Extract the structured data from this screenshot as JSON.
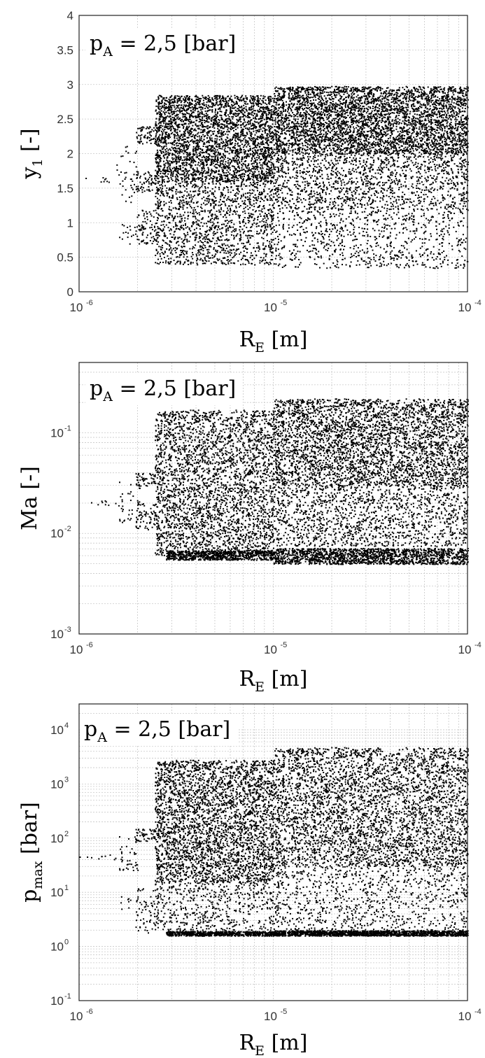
{
  "chart_data": [
    {
      "type": "scatter",
      "title": "",
      "annotation": {
        "prefix": "p",
        "sub": "A",
        "text": " = 2,5 [bar]"
      },
      "xlabel": {
        "main": "R",
        "sub": "E",
        "rest": " [m]"
      },
      "ylabel": {
        "main": "y",
        "sub": "1",
        "rest": " [-]"
      },
      "xscale": "log",
      "yscale": "linear",
      "xlim": [
        1e-06,
        0.0001
      ],
      "ylim": [
        0,
        4
      ],
      "grid": true,
      "x_ticks": [
        {
          "base": "10",
          "exp": "-6"
        },
        {
          "base": "10",
          "exp": "-5"
        },
        {
          "base": "10",
          "exp": "-4"
        }
      ],
      "y_ticks": [
        "0",
        "0.5",
        "1",
        "1.5",
        "2",
        "2.5",
        "3",
        "3.5",
        "4"
      ],
      "y_tick_values": [
        0,
        0.5,
        1,
        1.5,
        2,
        2.5,
        3,
        3.5,
        4
      ],
      "y_ticks_sup": [],
      "regions": [
        {
          "x": [
            1e-06,
            1.55e-06
          ],
          "y": [
            1.58,
            1.66
          ],
          "n": 8
        },
        {
          "x": [
            1.55e-06,
            2e-06
          ],
          "y": [
            1.3,
            2.15
          ],
          "n": 40
        },
        {
          "x": [
            1.6e-06,
            2.4e-06
          ],
          "y": [
            0.7,
            1.0
          ],
          "n": 30
        },
        {
          "x": [
            1.95e-06,
            2.45e-06
          ],
          "y": [
            2.15,
            2.4
          ],
          "n": 60
        },
        {
          "x": [
            1.95e-06,
            2.45e-06
          ],
          "y": [
            1.45,
            1.75
          ],
          "n": 60
        },
        {
          "x": [
            1.95e-06,
            2.45e-06
          ],
          "y": [
            0.7,
            1.2
          ],
          "n": 60
        },
        {
          "x": [
            2.45e-06,
            1e-05
          ],
          "y": [
            1.6,
            2.85
          ],
          "n": 3200
        },
        {
          "x": [
            2.45e-06,
            1e-05
          ],
          "y": [
            0.4,
            1.6
          ],
          "n": 1400
        },
        {
          "x": [
            1e-05,
            0.0001
          ],
          "y": [
            2.0,
            2.98
          ],
          "n": 4200
        },
        {
          "x": [
            1e-05,
            0.0001
          ],
          "y": [
            1.2,
            2.0
          ],
          "n": 1400
        },
        {
          "x": [
            1e-05,
            0.0001
          ],
          "y": [
            0.35,
            1.2
          ],
          "n": 800
        }
      ]
    },
    {
      "type": "scatter",
      "title": "",
      "annotation": {
        "prefix": "p",
        "sub": "A",
        "text": " = 2,5 [bar]"
      },
      "xlabel": {
        "main": "R",
        "sub": "E",
        "rest": " [m]"
      },
      "ylabel": {
        "main": "Ma",
        "sub": "",
        "rest": " [-]"
      },
      "xscale": "log",
      "yscale": "log",
      "xlim": [
        1e-06,
        0.0001
      ],
      "ylim": [
        0.001,
        0.5
      ],
      "grid": true,
      "x_ticks": [
        {
          "base": "10",
          "exp": "-6"
        },
        {
          "base": "10",
          "exp": "-5"
        },
        {
          "base": "10",
          "exp": "-4"
        }
      ],
      "y_ticks_sup": [
        {
          "base": "10",
          "exp": "-3",
          "value": 0.001
        },
        {
          "base": "10",
          "exp": "-2",
          "value": 0.01
        },
        {
          "base": "10",
          "exp": "-1",
          "value": 0.1
        }
      ],
      "y_ticks": [],
      "regions": [
        {
          "x": [
            1e-06,
            1.6e-06
          ],
          "y": [
            0.019,
            0.022
          ],
          "n": 10
        },
        {
          "x": [
            1.6e-06,
            2.1e-06
          ],
          "y": [
            0.013,
            0.033
          ],
          "n": 40
        },
        {
          "x": [
            1.95e-06,
            2.45e-06
          ],
          "y": [
            0.03,
            0.04
          ],
          "n": 50
        },
        {
          "x": [
            1.95e-06,
            2.45e-06
          ],
          "y": [
            0.011,
            0.02
          ],
          "n": 60
        },
        {
          "x": [
            2.45e-06,
            1e-05
          ],
          "y": [
            0.006,
            0.17
          ],
          "n": 3000
        },
        {
          "x": [
            2.8e-06,
            1e-05
          ],
          "y": [
            0.0055,
            0.0068
          ],
          "n": 700
        },
        {
          "x": [
            1e-05,
            0.0001
          ],
          "y": [
            0.03,
            0.22
          ],
          "n": 3600
        },
        {
          "x": [
            1e-05,
            0.0001
          ],
          "y": [
            0.0075,
            0.03
          ],
          "n": 1400
        },
        {
          "x": [
            1e-05,
            0.0001
          ],
          "y": [
            0.005,
            0.0072
          ],
          "n": 1600
        }
      ]
    },
    {
      "type": "scatter",
      "title": "",
      "annotation": {
        "prefix": "p",
        "sub": "A",
        "text": " = 2,5 [bar]"
      },
      "xlabel": {
        "main": "R",
        "sub": "E",
        "rest": " [m]"
      },
      "ylabel": {
        "main": "p",
        "sub": "max",
        "rest": " [bar]"
      },
      "xscale": "log",
      "yscale": "log",
      "xlim": [
        1e-06,
        0.0001
      ],
      "ylim": [
        0.1,
        30000
      ],
      "grid": true,
      "x_ticks": [
        {
          "base": "10",
          "exp": "-6"
        },
        {
          "base": "10",
          "exp": "-5"
        },
        {
          "base": "10",
          "exp": "-4"
        }
      ],
      "y_ticks_sup": [
        {
          "base": "10",
          "exp": "-1",
          "value": 0.1
        },
        {
          "base": "10",
          "exp": "0",
          "value": 1
        },
        {
          "base": "10",
          "exp": "1",
          "value": 10
        },
        {
          "base": "10",
          "exp": "2",
          "value": 100
        },
        {
          "base": "10",
          "exp": "3",
          "value": 1000
        },
        {
          "base": "10",
          "exp": "4",
          "value": 10000
        }
      ],
      "y_ticks": [],
      "regions": [
        {
          "x": [
            1e-06,
            1.6e-06
          ],
          "y": [
            40,
            50
          ],
          "n": 10
        },
        {
          "x": [
            1.6e-06,
            2e-06
          ],
          "y": [
            25,
            110
          ],
          "n": 40
        },
        {
          "x": [
            1.6e-06,
            2e-06
          ],
          "y": [
            5,
            9
          ],
          "n": 10
        },
        {
          "x": [
            1.95e-06,
            2.45e-06
          ],
          "y": [
            90,
            150
          ],
          "n": 50
        },
        {
          "x": [
            1.95e-06,
            2.45e-06
          ],
          "y": [
            1.8,
            12
          ],
          "n": 60
        },
        {
          "x": [
            2.45e-06,
            1e-05
          ],
          "y": [
            15,
            2800
          ],
          "n": 3200
        },
        {
          "x": [
            2.45e-06,
            1e-05
          ],
          "y": [
            2,
            15
          ],
          "n": 500
        },
        {
          "x": [
            2.8e-06,
            1e-05
          ],
          "y": [
            1.6,
            1.95
          ],
          "n": 700
        },
        {
          "x": [
            1e-05,
            0.0001
          ],
          "y": [
            30,
            4800
          ],
          "n": 3800
        },
        {
          "x": [
            1e-05,
            0.0001
          ],
          "y": [
            2,
            30
          ],
          "n": 900
        },
        {
          "x": [
            1e-05,
            0.0001
          ],
          "y": [
            1.6,
            2.0
          ],
          "n": 1500
        }
      ]
    }
  ]
}
